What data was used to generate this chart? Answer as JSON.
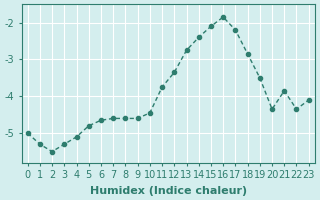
{
  "xlabel": "Humidex (Indice chaleur)",
  "ylabel": "",
  "x": [
    0,
    1,
    2,
    3,
    4,
    5,
    6,
    7,
    8,
    9,
    10,
    11,
    12,
    13,
    14,
    15,
    16,
    17,
    18,
    19,
    20,
    21,
    22,
    23
  ],
  "y": [
    -5.0,
    -5.3,
    -5.5,
    -5.3,
    -5.1,
    -4.8,
    -4.65,
    -4.6,
    -4.6,
    -4.6,
    -4.45,
    -3.75,
    -3.35,
    -2.75,
    -2.4,
    -2.1,
    -1.85,
    -2.2,
    -2.85,
    -3.5,
    -4.35,
    -3.85,
    -4.35,
    -4.1
  ],
  "line_color": "#2e7d6e",
  "marker": "o",
  "marker_size": 3,
  "bg_color": "#d4eeee",
  "grid_color": "#ffffff",
  "ylim": [
    -5.8,
    -1.5
  ],
  "yticks": [
    -5,
    -4,
    -3,
    -2
  ],
  "xlim": [
    -0.5,
    23.5
  ],
  "tick_label_fontsize": 7,
  "xlabel_fontsize": 8,
  "axis_color": "#2e7d6e"
}
